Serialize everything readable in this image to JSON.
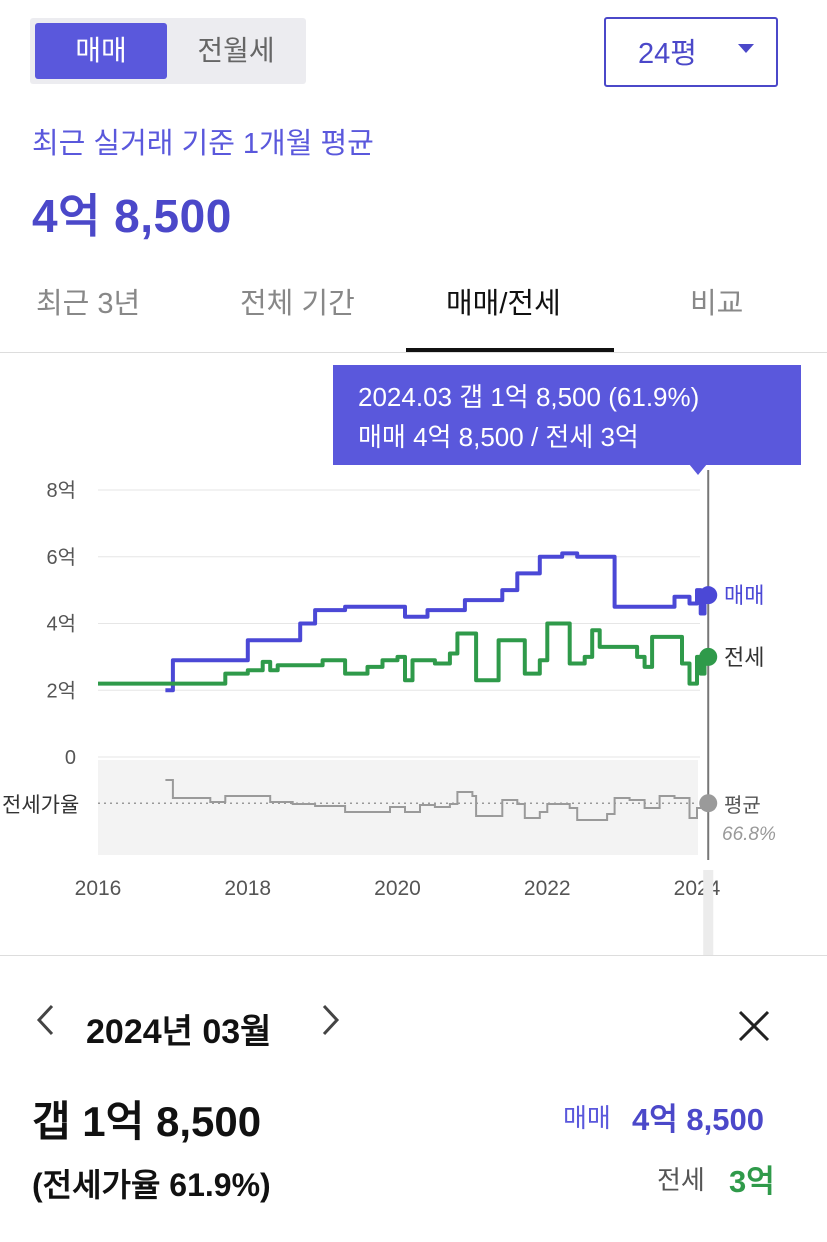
{
  "deal_toggle": {
    "sale": "매매",
    "rent": "전월세"
  },
  "size_selector": {
    "value": "24평"
  },
  "summary": {
    "subtitle": "최근 실거래 기준 1개월 평균",
    "price": "4억 8,500"
  },
  "tabs": [
    "최근 3년",
    "전체 기간",
    "매매/전세",
    "비교"
  ],
  "active_tab": "매매/전세",
  "tooltip": {
    "line1": "2024.03  갭 1억 8,500 (61.9%)",
    "line2": "매매 4억 8,500 / 전세 3억"
  },
  "colors": {
    "sale": "#4b48d6",
    "rent": "#2f9a4a",
    "ratio": "#9a9a9a",
    "accent": "#5a58dc"
  },
  "chart_data": {
    "type": "line",
    "x_ticks": [
      "2016",
      "2018",
      "2020",
      "2022",
      "2024"
    ],
    "y_ticks": [
      "8억",
      "6억",
      "4억",
      "2억",
      "0"
    ],
    "ylim": [
      0,
      8
    ],
    "y_unit": "억",
    "series": [
      {
        "name": "매매",
        "points": [
          [
            2016.9,
            2.0
          ],
          [
            2017.0,
            2.9
          ],
          [
            2017.7,
            2.9
          ],
          [
            2018.0,
            3.5
          ],
          [
            2018.5,
            3.5
          ],
          [
            2018.7,
            4.0
          ],
          [
            2018.9,
            4.4
          ],
          [
            2019.3,
            4.5
          ],
          [
            2019.9,
            4.5
          ],
          [
            2020.1,
            4.2
          ],
          [
            2020.4,
            4.4
          ],
          [
            2020.7,
            4.4
          ],
          [
            2020.9,
            4.7
          ],
          [
            2021.4,
            5.0
          ],
          [
            2021.6,
            5.5
          ],
          [
            2021.9,
            6.0
          ],
          [
            2022.2,
            6.1
          ],
          [
            2022.4,
            6.0
          ],
          [
            2022.8,
            6.0
          ],
          [
            2022.9,
            4.5
          ],
          [
            2023.5,
            4.5
          ],
          [
            2023.7,
            4.8
          ],
          [
            2023.9,
            4.6
          ],
          [
            2024.0,
            5.0
          ],
          [
            2024.05,
            4.3
          ],
          [
            2024.1,
            4.85
          ]
        ],
        "end_label": "매매"
      },
      {
        "name": "전세",
        "points": [
          [
            2016.0,
            2.2
          ],
          [
            2017.5,
            2.2
          ],
          [
            2017.7,
            2.5
          ],
          [
            2018.0,
            2.6
          ],
          [
            2018.2,
            2.85
          ],
          [
            2018.3,
            2.6
          ],
          [
            2018.4,
            2.75
          ],
          [
            2019.0,
            2.9
          ],
          [
            2019.3,
            2.5
          ],
          [
            2019.6,
            2.7
          ],
          [
            2019.8,
            2.9
          ],
          [
            2020.0,
            3.0
          ],
          [
            2020.1,
            2.3
          ],
          [
            2020.2,
            2.9
          ],
          [
            2020.5,
            2.8
          ],
          [
            2020.7,
            3.1
          ],
          [
            2020.8,
            3.7
          ],
          [
            2021.0,
            3.7
          ],
          [
            2021.05,
            2.3
          ],
          [
            2021.3,
            2.3
          ],
          [
            2021.35,
            3.5
          ],
          [
            2021.6,
            3.5
          ],
          [
            2021.7,
            2.5
          ],
          [
            2021.9,
            2.9
          ],
          [
            2022.0,
            4.0
          ],
          [
            2022.2,
            4.0
          ],
          [
            2022.3,
            2.8
          ],
          [
            2022.5,
            3.0
          ],
          [
            2022.6,
            3.8
          ],
          [
            2022.7,
            3.3
          ],
          [
            2023.0,
            3.3
          ],
          [
            2023.2,
            3.0
          ],
          [
            2023.3,
            2.7
          ],
          [
            2023.4,
            3.6
          ],
          [
            2023.7,
            3.6
          ],
          [
            2023.8,
            2.8
          ],
          [
            2023.9,
            2.2
          ],
          [
            2024.0,
            3.0
          ],
          [
            2024.05,
            2.5
          ],
          [
            2024.1,
            3.0
          ]
        ],
        "end_label": "전세"
      }
    ],
    "ratio_panel": {
      "label": "전세가율",
      "average_label": "평균",
      "average_value": "66.8%",
      "points": [
        [
          2016.9,
          90
        ],
        [
          2017.0,
          72
        ],
        [
          2017.4,
          72
        ],
        [
          2017.5,
          68
        ],
        [
          2017.7,
          74
        ],
        [
          2018.1,
          74
        ],
        [
          2018.3,
          68
        ],
        [
          2018.6,
          66
        ],
        [
          2018.9,
          64
        ],
        [
          2019.3,
          58
        ],
        [
          2019.6,
          58
        ],
        [
          2019.9,
          63
        ],
        [
          2020.1,
          58
        ],
        [
          2020.3,
          65
        ],
        [
          2020.5,
          63
        ],
        [
          2020.7,
          66
        ],
        [
          2020.8,
          78
        ],
        [
          2021.0,
          74
        ],
        [
          2021.05,
          54
        ],
        [
          2021.3,
          54
        ],
        [
          2021.4,
          70
        ],
        [
          2021.6,
          66
        ],
        [
          2021.7,
          52
        ],
        [
          2021.9,
          58
        ],
        [
          2022.0,
          66
        ],
        [
          2022.3,
          62
        ],
        [
          2022.4,
          50
        ],
        [
          2022.8,
          56
        ],
        [
          2022.9,
          72
        ],
        [
          2023.1,
          70
        ],
        [
          2023.3,
          62
        ],
        [
          2023.5,
          74
        ],
        [
          2023.7,
          72
        ],
        [
          2023.9,
          52
        ],
        [
          2024.0,
          62
        ],
        [
          2024.1,
          62
        ]
      ],
      "average": 66.8
    },
    "selected_x": 2024.15
  },
  "detail": {
    "date": "2024년 03월",
    "gap": "갭 1억 8,500",
    "ratio": "(전세가율 61.9%)",
    "sale_label": "매매",
    "sale_value": "4억 8,500",
    "rent_label": "전세",
    "rent_value": "3억"
  }
}
